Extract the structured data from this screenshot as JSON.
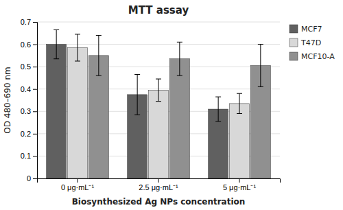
{
  "chart_data": {
    "type": "bar",
    "title": "MTT assay",
    "xlabel": "Biosynthesized Ag NPs concentration",
    "ylabel": "OD 480–690 nm",
    "categories": [
      "0 μg·mL⁻¹",
      "2.5 μg·mL⁻¹",
      "5 μg·mL⁻¹"
    ],
    "series": [
      {
        "name": "MCF7",
        "values": [
          0.6,
          0.375,
          0.31
        ],
        "errors": [
          0.065,
          0.09,
          0.055
        ],
        "color": "#606060"
      },
      {
        "name": "T47D",
        "values": [
          0.585,
          0.395,
          0.335
        ],
        "errors": [
          0.06,
          0.05,
          0.045
        ],
        "color": "#d8d8d8"
      },
      {
        "name": "MCF10-A",
        "values": [
          0.55,
          0.535,
          0.505
        ],
        "errors": [
          0.09,
          0.075,
          0.095
        ],
        "color": "#909090"
      }
    ],
    "ylim": [
      0,
      0.7
    ],
    "yticks": [
      0,
      0.1,
      0.2,
      0.3,
      0.4,
      0.5,
      0.6,
      0.7
    ],
    "grid": true,
    "legend": "right"
  }
}
